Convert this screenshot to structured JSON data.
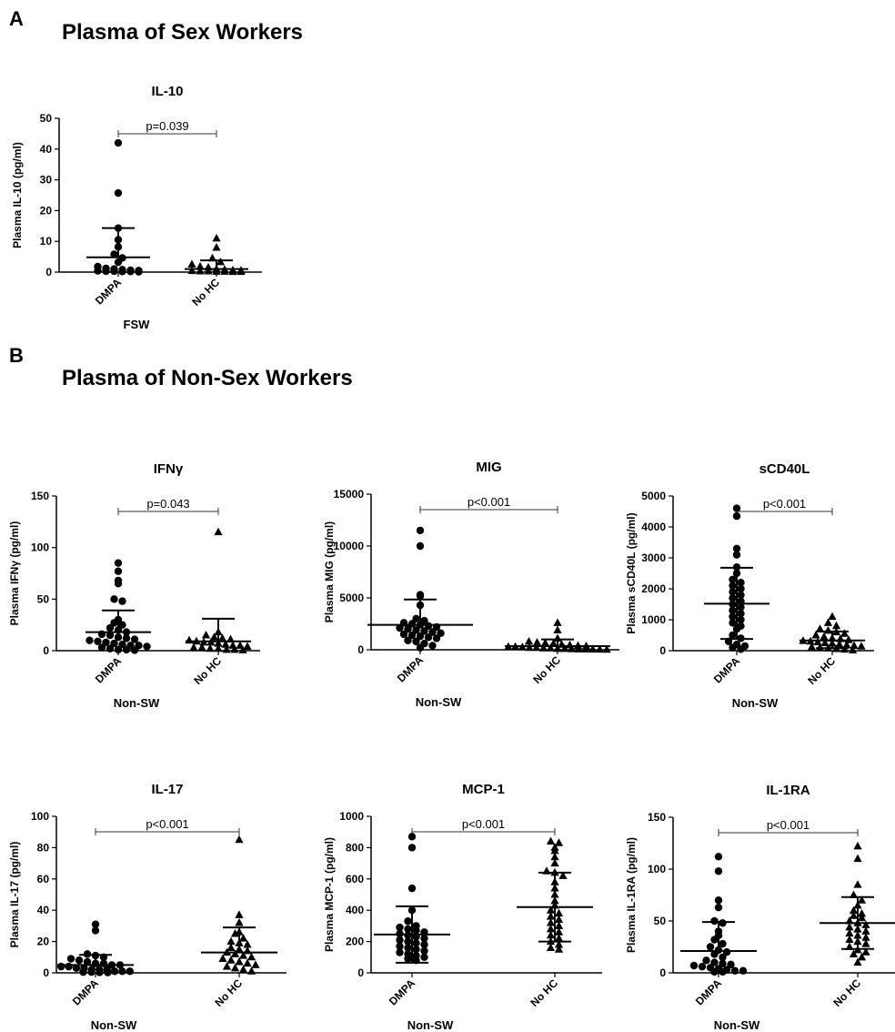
{
  "panels": {
    "a": {
      "letter": "A",
      "title": "Plasma of Sex Workers"
    },
    "b": {
      "letter": "B",
      "title": "Plasma of Non-Sex Workers"
    }
  },
  "chart_data": [
    {
      "id": "il10",
      "type": "scatter",
      "title": "IL-10",
      "ylabel": "Plasma IL-10 (pg/ml)",
      "xlabel": "FSW",
      "categories": [
        "DMPA",
        "No HC"
      ],
      "ylim": [
        0,
        50
      ],
      "yticks": [
        0,
        10,
        20,
        30,
        40,
        50
      ],
      "pvalue": "p=0.039",
      "series": [
        {
          "group": "DMPA",
          "marker": "circle",
          "mean": 4.8,
          "sd_upper": 14.3,
          "values": [
            42,
            25.7,
            14.3,
            10.5,
            8.2,
            5.8,
            4.6,
            3.2,
            1.8,
            1.2,
            1.0,
            0.8,
            0.6,
            0.5,
            0.4,
            0.3,
            0.3,
            0.2,
            0.2,
            0.1
          ]
        },
        {
          "group": "No HC",
          "marker": "triangle",
          "mean": 1.0,
          "sd_upper": 3.8,
          "values": [
            11,
            8,
            4.5,
            3.3,
            2.5,
            1.8,
            1.5,
            1.0,
            0.8,
            0.6,
            0.5,
            0.4,
            0.3,
            0.3,
            0.2,
            0.2,
            0.1,
            0.1
          ]
        }
      ]
    },
    {
      "id": "ifng",
      "type": "scatter",
      "title": "IFNγ",
      "ylabel": "Plasma IFNγ (pg/ml)",
      "xlabel": "Non-SW",
      "categories": [
        "DMPA",
        "No HC"
      ],
      "ylim": [
        0,
        150
      ],
      "yticks": [
        0,
        50,
        100,
        150
      ],
      "pvalue": "p=0.043",
      "series": [
        {
          "group": "DMPA",
          "marker": "circle",
          "mean": 18,
          "sd_upper": 39,
          "values": [
            85,
            77,
            68,
            65,
            50,
            48,
            30,
            27,
            25,
            22,
            20,
            18,
            16,
            15,
            13,
            12,
            11,
            10,
            9,
            8,
            7,
            6,
            5,
            5,
            4,
            3,
            2,
            1,
            1,
            0.5
          ]
        },
        {
          "group": "No HC",
          "marker": "triangle",
          "mean": 9,
          "sd_upper": 31,
          "values": [
            115,
            18,
            15,
            13,
            12,
            11,
            10,
            9,
            8,
            8,
            7,
            6,
            5,
            5,
            4,
            3,
            3,
            2,
            2,
            1,
            1,
            0.5
          ]
        }
      ]
    },
    {
      "id": "mig",
      "type": "scatter",
      "title": "MIG",
      "ylabel": "Plasma MIG (pg/ml)",
      "xlabel": "Non-SW",
      "categories": [
        "DMPA",
        "No HC"
      ],
      "ylim": [
        0,
        15000
      ],
      "yticks": [
        0,
        5000,
        10000,
        15000
      ],
      "pvalue": "p<0.001",
      "series": [
        {
          "group": "DMPA",
          "marker": "circle",
          "mean": 2400,
          "sd_upper": 4850,
          "values": [
            11500,
            10000,
            5300,
            5200,
            4300,
            3000,
            2800,
            2600,
            2500,
            2400,
            2300,
            2200,
            2100,
            2000,
            1900,
            1800,
            1700,
            1600,
            1500,
            1400,
            1300,
            1200,
            1100,
            900,
            800,
            600,
            400,
            200
          ]
        },
        {
          "group": "No HC",
          "marker": "triangle",
          "mean": 350,
          "sd_upper": 1000,
          "values": [
            2600,
            1900,
            1100,
            800,
            700,
            650,
            600,
            500,
            450,
            400,
            350,
            300,
            300,
            250,
            200,
            200,
            150,
            150,
            100,
            100,
            80,
            60,
            50,
            40,
            30,
            20
          ]
        }
      ]
    },
    {
      "id": "scd40l",
      "type": "scatter",
      "title": "sCD40L",
      "ylabel": "Plasma sCD40L (pg/ml)",
      "xlabel": "Non-SW",
      "categories": [
        "DMPA",
        "No HC"
      ],
      "ylim": [
        0,
        5000
      ],
      "yticks": [
        0,
        1000,
        2000,
        3000,
        4000,
        5000
      ],
      "pvalue": "p<0.001",
      "series": [
        {
          "group": "DMPA",
          "marker": "circle",
          "mean": 1520,
          "sd_upper": 2680,
          "sd_lower": 380,
          "values": [
            4600,
            4350,
            3300,
            3100,
            2700,
            2500,
            2300,
            2200,
            2100,
            2000,
            1900,
            1800,
            1700,
            1600,
            1500,
            1400,
            1300,
            1200,
            1100,
            1000,
            900,
            800,
            700,
            500,
            400,
            300,
            200,
            150,
            100,
            50
          ]
        },
        {
          "group": "No HC",
          "marker": "triangle",
          "mean": 330,
          "sd_upper": 620,
          "sd_lower": 80,
          "values": [
            1100,
            900,
            800,
            700,
            650,
            600,
            550,
            500,
            450,
            400,
            380,
            350,
            320,
            300,
            280,
            250,
            230,
            200,
            180,
            160,
            140,
            120,
            100,
            80,
            60,
            40,
            20
          ]
        }
      ]
    },
    {
      "id": "il17",
      "type": "scatter",
      "title": "IL-17",
      "ylabel": "Plasma IL-17 (pg/ml)",
      "xlabel": "Non-SW",
      "categories": [
        "DMPA",
        "No HC"
      ],
      "ylim": [
        0,
        100
      ],
      "yticks": [
        0,
        20,
        40,
        60,
        80,
        100
      ],
      "pvalue": "p<0.001",
      "series": [
        {
          "group": "DMPA",
          "marker": "circle",
          "mean": 5,
          "sd_upper": 11.5,
          "values": [
            31,
            27,
            12,
            11,
            10,
            9,
            8,
            7,
            6,
            6,
            5,
            5,
            4,
            4,
            3,
            3,
            2,
            2,
            2,
            1,
            1,
            1,
            0.5,
            0.5,
            0.3,
            0.2
          ]
        },
        {
          "group": "No HC",
          "marker": "triangle",
          "mean": 13,
          "sd_upper": 29,
          "values": [
            85,
            37,
            32,
            26,
            25,
            22,
            20,
            19,
            18,
            16,
            15,
            14,
            13,
            12,
            11,
            10,
            9,
            8,
            7,
            6,
            5,
            4,
            3,
            2,
            1
          ]
        }
      ]
    },
    {
      "id": "mcp1",
      "type": "scatter",
      "title": "MCP-1",
      "ylabel": "Plasma MCP-1 (pg/ml)",
      "xlabel": "Non-SW",
      "categories": [
        "DMPA",
        "No HC"
      ],
      "ylim": [
        0,
        1000
      ],
      "yticks": [
        0,
        200,
        400,
        600,
        800,
        1000
      ],
      "pvalue": "p<0.001",
      "series": [
        {
          "group": "DMPA",
          "marker": "circle",
          "mean": 245,
          "sd_upper": 425,
          "sd_lower": 65,
          "values": [
            870,
            800,
            540,
            400,
            330,
            300,
            290,
            280,
            270,
            260,
            250,
            240,
            230,
            220,
            210,
            200,
            190,
            180,
            170,
            160,
            150,
            140,
            130,
            120,
            110,
            100,
            90,
            80
          ]
        },
        {
          "group": "No HC",
          "marker": "triangle",
          "mean": 420,
          "sd_upper": 640,
          "sd_lower": 200,
          "values": [
            840,
            830,
            800,
            780,
            740,
            700,
            650,
            640,
            620,
            580,
            540,
            500,
            460,
            430,
            400,
            380,
            360,
            340,
            320,
            300,
            280,
            260,
            240,
            220,
            200,
            180,
            160,
            150
          ]
        }
      ]
    },
    {
      "id": "il1ra",
      "type": "scatter",
      "title": "IL-1RA",
      "ylabel": "Plasma IL-1RA (pg/ml)",
      "xlabel": "Non-SW",
      "categories": [
        "DMPA",
        "No HC"
      ],
      "ylim": [
        0,
        150
      ],
      "yticks": [
        0,
        50,
        100,
        150
      ],
      "pvalue": "p<0.001",
      "series": [
        {
          "group": "DMPA",
          "marker": "circle",
          "mean": 21,
          "sd_upper": 49,
          "values": [
            112,
            98,
            70,
            63,
            50,
            48,
            40,
            36,
            32,
            28,
            25,
            22,
            20,
            18,
            15,
            12,
            10,
            9,
            8,
            7,
            6,
            5,
            4,
            3,
            2,
            2,
            1,
            1
          ]
        },
        {
          "group": "No HC",
          "marker": "triangle",
          "mean": 48,
          "sd_upper": 73,
          "sd_lower": 23,
          "values": [
            122,
            110,
            85,
            75,
            70,
            65,
            60,
            57,
            55,
            53,
            50,
            48,
            46,
            44,
            42,
            40,
            38,
            36,
            34,
            32,
            30,
            28,
            25,
            22,
            20,
            18,
            15,
            10
          ]
        }
      ]
    }
  ]
}
